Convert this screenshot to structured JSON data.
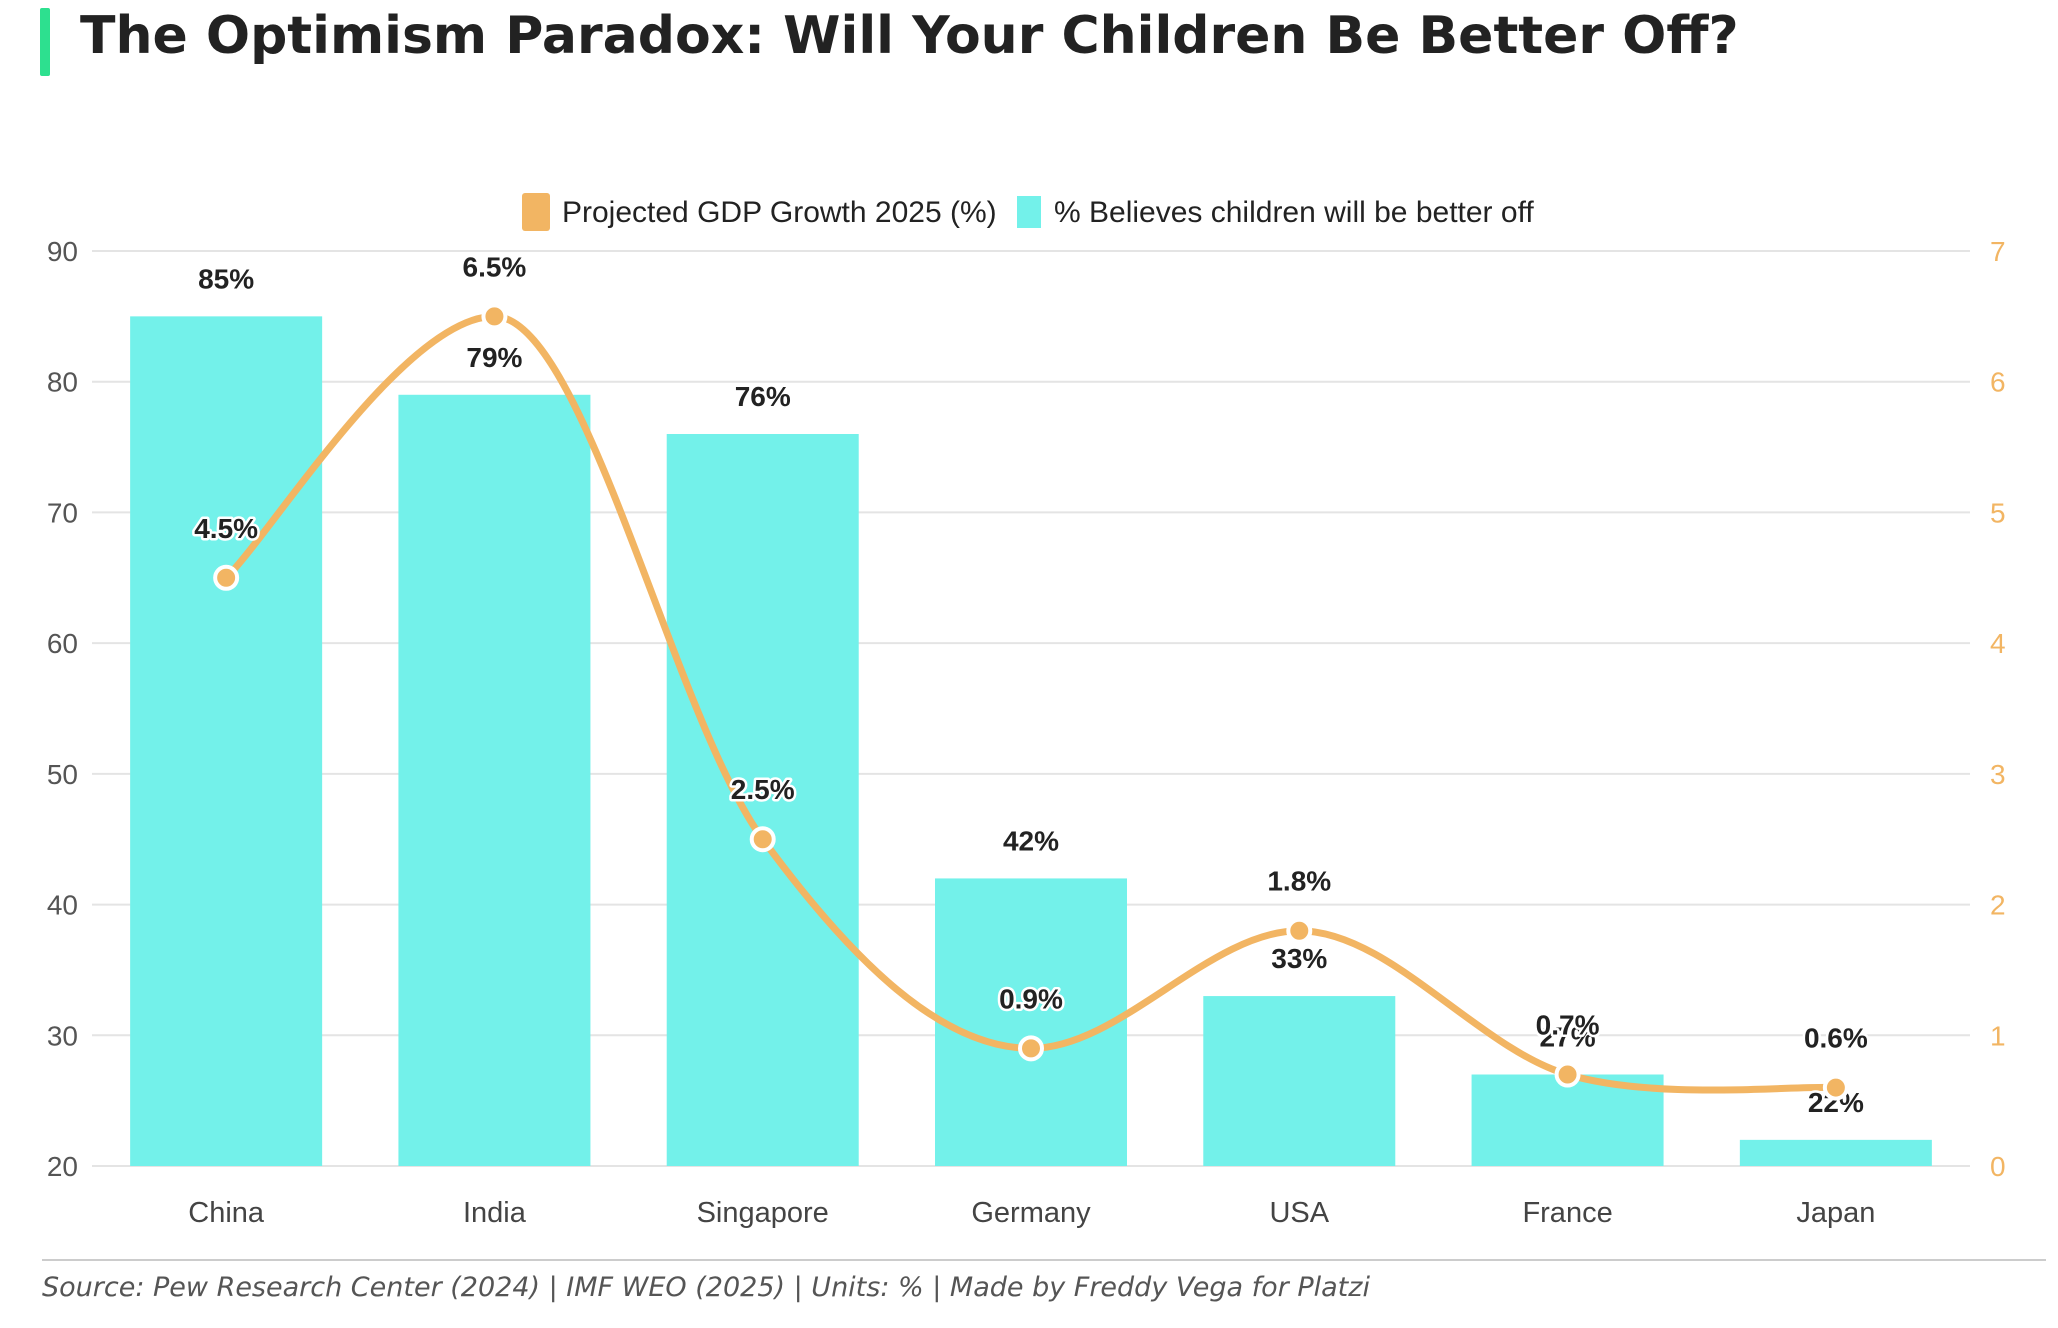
{
  "title": "The Optimism Paradox: Will Your Children Be Better Off?",
  "source": "Source: Pew Research Center (2024) | IMF WEO (2025) | Units: % | Made by Freddy Vega for Platzi",
  "colors": {
    "accent": "#2de08f",
    "bars": "#73f1ea",
    "line": "#f2b563",
    "grid": "#e4e4e4",
    "text": "#222222",
    "left_axis_text": "#555555",
    "right_axis_text": "#f2b563"
  },
  "chart_data": {
    "type": "bar",
    "categories": [
      "China",
      "India",
      "Singapore",
      "Germany",
      "USA",
      "France",
      "Japan"
    ],
    "series": [
      {
        "name": "% Believes children will be better off",
        "type": "bar",
        "axis": "left",
        "values": [
          85,
          79,
          76,
          42,
          33,
          27,
          22
        ],
        "labels": [
          "85%",
          "79%",
          "76%",
          "42%",
          "33%",
          "27%",
          "22%"
        ]
      },
      {
        "name": "Projected GDP Growth 2025 (%)",
        "type": "line",
        "axis": "right",
        "smooth": true,
        "values": [
          4.5,
          6.5,
          2.5,
          0.9,
          1.8,
          0.7,
          0.6
        ],
        "labels": [
          "4.5%",
          "6.5%",
          "2.5%",
          "0.9%",
          "1.8%",
          "0.7%",
          "0.6%"
        ]
      }
    ],
    "legend": [
      "Projected GDP Growth 2025 (%)",
      "% Believes children will be better off"
    ],
    "legend_position": "top-center",
    "y_left": {
      "min": 20,
      "max": 90,
      "ticks": [
        "20",
        "30",
        "40",
        "50",
        "60",
        "70",
        "80",
        "90"
      ]
    },
    "y_right": {
      "min": 0,
      "max": 7,
      "ticks": [
        "0",
        "1",
        "2",
        "3",
        "4",
        "5",
        "6",
        "7"
      ]
    },
    "grid": true
  }
}
